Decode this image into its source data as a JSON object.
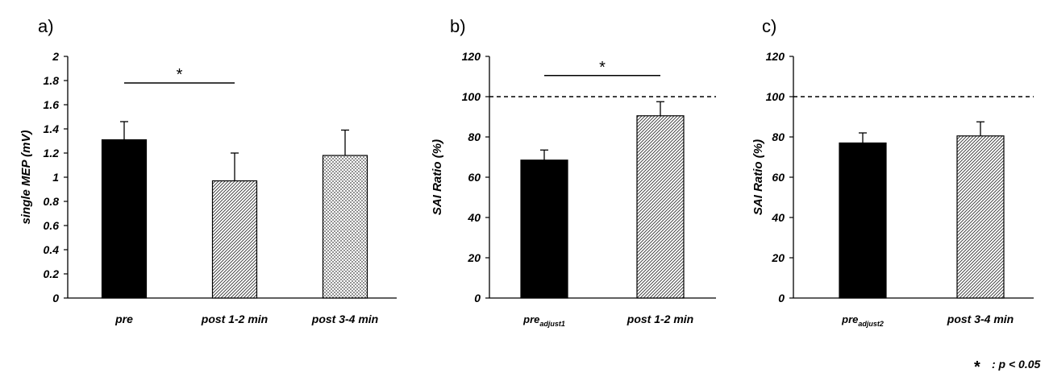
{
  "chart_data": [
    {
      "type": "bar",
      "panel_label": "a)",
      "ylabel": "single MEP (mV)",
      "ylim": [
        0,
        2
      ],
      "yticks": [
        "0",
        "0.2",
        "0.4",
        "0.6",
        "0.8",
        "1",
        "1.2",
        "1.4",
        "1.6",
        "1.8",
        "2"
      ],
      "categories": [
        {
          "base": "pre",
          "sub": ""
        },
        {
          "base": "post 1-2 min",
          "sub": ""
        },
        {
          "base": "post 3-4 min",
          "sub": ""
        }
      ],
      "values": [
        1.31,
        0.97,
        1.18
      ],
      "errors": [
        0.15,
        0.23,
        0.21
      ],
      "fills": [
        "solid",
        "diagonal",
        "dots"
      ],
      "significance": [
        {
          "from": 0,
          "to": 1,
          "y": 1.78,
          "label": "*"
        }
      ],
      "reference_line": null
    },
    {
      "type": "bar",
      "panel_label": "b)",
      "ylabel": "SAI Ratio (%)",
      "ylim": [
        0,
        120
      ],
      "yticks": [
        "0",
        "20",
        "40",
        "60",
        "80",
        "100",
        "120"
      ],
      "categories": [
        {
          "base": "pre",
          "sub": "adjust1"
        },
        {
          "base": "post 1-2 min",
          "sub": ""
        }
      ],
      "values": [
        68.5,
        90.5
      ],
      "errors": [
        5,
        7
      ],
      "fills": [
        "solid",
        "diagonal"
      ],
      "significance": [
        {
          "from": 0,
          "to": 1,
          "y": 110.5,
          "label": "*"
        }
      ],
      "reference_line": 100
    },
    {
      "type": "bar",
      "panel_label": "c)",
      "ylabel": "SAI Ratio (%)",
      "ylim": [
        0,
        120
      ],
      "yticks": [
        "0",
        "20",
        "40",
        "60",
        "80",
        "100",
        "120"
      ],
      "categories": [
        {
          "base": "pre",
          "sub": "adjust2"
        },
        {
          "base": "post 3-4 min",
          "sub": ""
        }
      ],
      "values": [
        77,
        80.5
      ],
      "errors": [
        5,
        7
      ],
      "fills": [
        "solid",
        "diagonal"
      ],
      "significance": [],
      "reference_line": 100
    }
  ],
  "legend_note": {
    "symbol": "*",
    "text": ": p < 0.05"
  },
  "colors": {
    "bar_solid": "#000000",
    "bar_hatch_bg": "#ffffff",
    "bar_hatch_line": "#333333"
  }
}
